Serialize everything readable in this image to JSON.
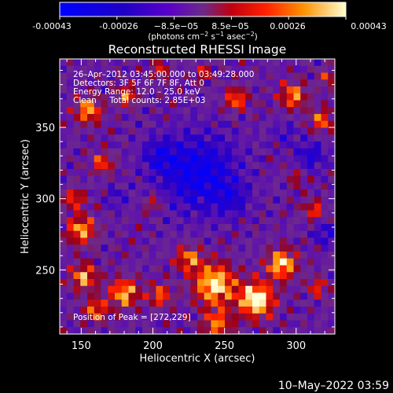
{
  "colorbar": {
    "tick_labels": [
      "-0.00043",
      "-0.00026",
      "−8.5e−05",
      "8.5e−05",
      "0.00026",
      "0.00043"
    ],
    "unit_parts": {
      "prefix": "(photons cm",
      "exp1": "−2",
      "mid1": " s",
      "exp2": "−1",
      "mid2": " asec",
      "exp3": "−2",
      "suffix": ")"
    },
    "range": [
      -0.00043,
      0.00043
    ]
  },
  "header": {
    "timestamp": "10–May–2022 03:59"
  },
  "annotations": {
    "lines": [
      "26–Apr–2012 03:45:00.000 to 03:49:28.000",
      "Detectors: 3F 5F 6F 7F 8F, Att 0",
      "Energy Range: 12.0 – 25.0 keV",
      "Clean     Total counts: 2.85E+03"
    ],
    "peak": "Position of Peak = [272,229]"
  },
  "chart_data": {
    "type": "heatmap",
    "title": "Reconstructed RHESSI Image",
    "xlabel": "Heliocentric X (arcsec)",
    "ylabel": "Heliocentric Y (arcsec)",
    "xlim": [
      135,
      327
    ],
    "ylim": [
      205,
      398
    ],
    "x_ticks": [
      150,
      200,
      250,
      300
    ],
    "y_ticks": [
      250,
      300,
      350
    ],
    "grid": false,
    "peak_position": [
      272,
      229
    ],
    "grid_size": [
      40,
      40
    ],
    "blobs": [
      [
        272,
        229,
        12,
        1.0
      ],
      [
        243,
        240,
        14,
        0.9
      ],
      [
        290,
        254,
        10,
        0.85
      ],
      [
        225,
        258,
        9,
        0.6
      ],
      [
        205,
        232,
        8,
        0.55
      ],
      [
        180,
        234,
        10,
        0.75
      ],
      [
        152,
        245,
        9,
        0.7
      ],
      [
        160,
        222,
        8,
        0.6
      ],
      [
        315,
        238,
        7,
        0.45
      ],
      [
        245,
        212,
        10,
        0.6
      ],
      [
        150,
        278,
        10,
        0.7
      ],
      [
        145,
        300,
        7,
        0.55
      ],
      [
        165,
        325,
        7,
        0.55
      ],
      [
        182,
        372,
        7,
        0.6
      ],
      [
        155,
        362,
        9,
        0.7
      ],
      [
        258,
        370,
        8,
        0.6
      ],
      [
        298,
        372,
        9,
        0.65
      ],
      [
        318,
        355,
        8,
        0.55
      ],
      [
        322,
        385,
        6,
        0.45
      ],
      [
        235,
        388,
        6,
        0.4
      ],
      [
        205,
        390,
        6,
        0.45
      ],
      [
        312,
        292,
        7,
        0.5
      ],
      [
        200,
        297,
        6,
        0.4
      ],
      [
        300,
        315,
        6,
        0.35
      ]
    ],
    "dips": [
      [
        232,
        318,
        26,
        -0.75
      ],
      [
        205,
        330,
        12,
        -0.45
      ],
      [
        255,
        300,
        12,
        -0.35
      ],
      [
        310,
        330,
        10,
        -0.5
      ],
      [
        320,
        275,
        8,
        -0.45
      ],
      [
        175,
        300,
        8,
        -0.3
      ],
      [
        292,
        345,
        8,
        -0.3
      ]
    ]
  }
}
